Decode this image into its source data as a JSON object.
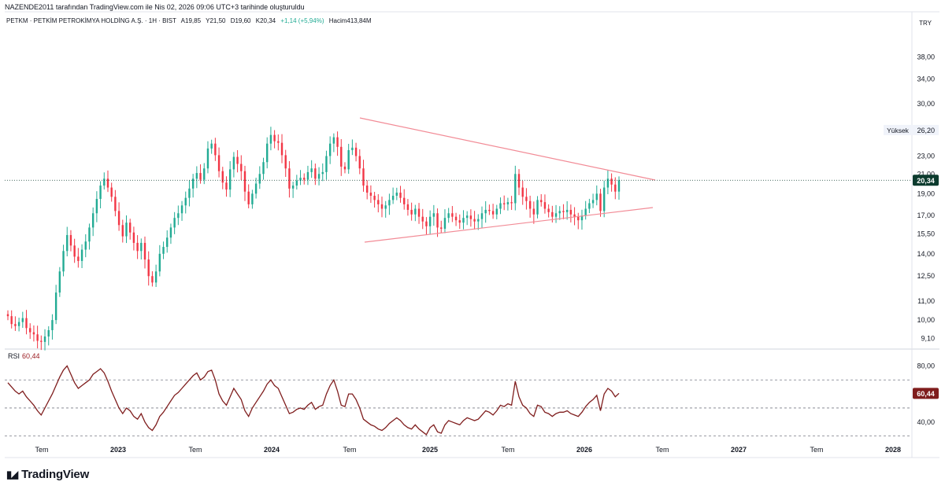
{
  "header": {
    "credit": "NAZENDE2011 tarafından TradingView.com ile Nis 02, 2026 09:06 UTC+3 tarihinde oluşturuldu",
    "symbol": "PETKM · PETKİM PETROKİMYA HOLDİNG A.Ş. · 1H · BIST",
    "open": "A19,85",
    "high": "Y21,50",
    "low": "D19,60",
    "close": "K20,34",
    "change": "+1,14 (+5,94%)",
    "volume": "Hacim413,84M"
  },
  "currency": "TRY",
  "brand": {
    "name": "TradingView",
    "icon": "tradingview-logo-icon"
  },
  "colors": {
    "up": "#22ab94",
    "down": "#f23645",
    "rsi": "#7f1d1d",
    "trendline": "#f28b96",
    "price_badge": "#0c3b2e",
    "rsi_badge": "#7f1d1d"
  },
  "chart_data": [
    {
      "type": "candlestick",
      "scale": "log",
      "ylim": [
        8.7,
        44
      ],
      "y_ticks": [
        "38,00",
        "34,00",
        "30,00",
        "26,20",
        "23,00",
        "21,00",
        "19,00",
        "17,00",
        "15,50",
        "14,00",
        "12,50",
        "11,00",
        "10,00",
        "9,10"
      ],
      "x_ticks": [
        "Tem",
        "2023",
        "Tem",
        "2024",
        "Tem",
        "2025",
        "Tem",
        "2026",
        "Tem",
        "2027",
        "Tem",
        "2028"
      ],
      "last_price": 20.34,
      "last_price_label": "20,34",
      "high_marker": {
        "label": "Yüksek",
        "value": "26,20"
      },
      "closes_weekly_approx": [
        10.2,
        9.8,
        9.7,
        9.9,
        10.1,
        9.6,
        9.4,
        9.3,
        9.0,
        8.95,
        9.2,
        9.5,
        10.0,
        11.5,
        12.8,
        14.2,
        15.4,
        14.6,
        13.8,
        13.5,
        14.3,
        14.9,
        16.0,
        17.2,
        18.5,
        19.8,
        20.5,
        19.6,
        18.7,
        17.4,
        16.2,
        15.3,
        16.4,
        15.6,
        14.8,
        14.2,
        14.8,
        13.6,
        12.5,
        12.1,
        12.8,
        14.0,
        14.5,
        15.2,
        16.0,
        16.8,
        17.2,
        17.9,
        18.6,
        19.5,
        20.5,
        21.1,
        20.4,
        21.6,
        23.9,
        24.5,
        23.1,
        21.3,
        20.1,
        19.4,
        21.5,
        22.9,
        22.1,
        21.3,
        19.2,
        18.0,
        19.0,
        20.0,
        21.0,
        22.3,
        24.5,
        25.6,
        24.8,
        24.6,
        23.1,
        21.6,
        19.5,
        19.8,
        20.3,
        20.6,
        20.4,
        21.2,
        21.6,
        20.5,
        21.0,
        21.2,
        23.0,
        24.5,
        25.3,
        24.1,
        21.8,
        21.5,
        23.7,
        24.0,
        23.0,
        21.6,
        19.8,
        19.1,
        18.8,
        18.4,
        18.0,
        17.6,
        17.9,
        18.4,
        18.8,
        19.1,
        18.6,
        18.0,
        17.5,
        17.1,
        17.6,
        16.9,
        16.5,
        16.1,
        16.9,
        17.2,
        16.0,
        15.9,
        16.8,
        17.2,
        16.9,
        16.6,
        16.4,
        16.8,
        17.0,
        16.7,
        16.5,
        16.7,
        17.2,
        17.5,
        17.4,
        17.1,
        17.6,
        18.1,
        18.0,
        18.2,
        18.1,
        21.0,
        19.6,
        18.7,
        18.3,
        17.6,
        17.1,
        18.4,
        18.2,
        17.6,
        17.3,
        16.9,
        17.2,
        17.4,
        17.3,
        17.5,
        17.1,
        16.9,
        16.6,
        17.0,
        17.6,
        18.1,
        18.4,
        19.0,
        17.4,
        19.6,
        20.5,
        19.9,
        19.2,
        20.34
      ]
    },
    {
      "type": "line",
      "name": "RSI",
      "value_label": "60,44",
      "ylim": [
        27,
        92
      ],
      "y_ticks": [
        "80,00",
        "40,00"
      ],
      "bands": [
        70,
        50,
        30
      ],
      "values_weekly_approx": [
        68,
        65,
        62,
        60,
        62,
        58,
        55,
        52,
        48,
        45,
        50,
        55,
        60,
        66,
        72,
        77,
        80,
        74,
        68,
        64,
        66,
        68,
        70,
        74,
        76,
        78,
        75,
        69,
        62,
        56,
        50,
        46,
        50,
        48,
        44,
        42,
        46,
        40,
        36,
        34,
        38,
        44,
        47,
        51,
        55,
        59,
        61,
        64,
        67,
        70,
        73,
        75,
        70,
        72,
        76,
        77,
        70,
        60,
        55,
        52,
        58,
        64,
        60,
        56,
        48,
        44,
        50,
        54,
        58,
        62,
        67,
        70,
        66,
        64,
        58,
        52,
        46,
        47,
        49,
        50,
        49,
        52,
        54,
        49,
        51,
        52,
        60,
        66,
        70,
        62,
        52,
        51,
        60,
        60,
        56,
        50,
        42,
        40,
        38,
        37,
        35,
        34,
        36,
        39,
        41,
        43,
        41,
        38,
        36,
        35,
        38,
        35,
        33,
        31,
        36,
        38,
        33,
        32,
        38,
        41,
        40,
        39,
        38,
        41,
        43,
        42,
        41,
        42,
        45,
        48,
        47,
        45,
        48,
        52,
        51,
        53,
        52,
        69,
        58,
        52,
        50,
        46,
        44,
        52,
        51,
        47,
        46,
        44,
        46,
        47,
        47,
        48,
        46,
        45,
        44,
        47,
        51,
        54,
        56,
        59,
        48,
        60,
        64,
        62,
        58,
        60.44
      ]
    }
  ]
}
